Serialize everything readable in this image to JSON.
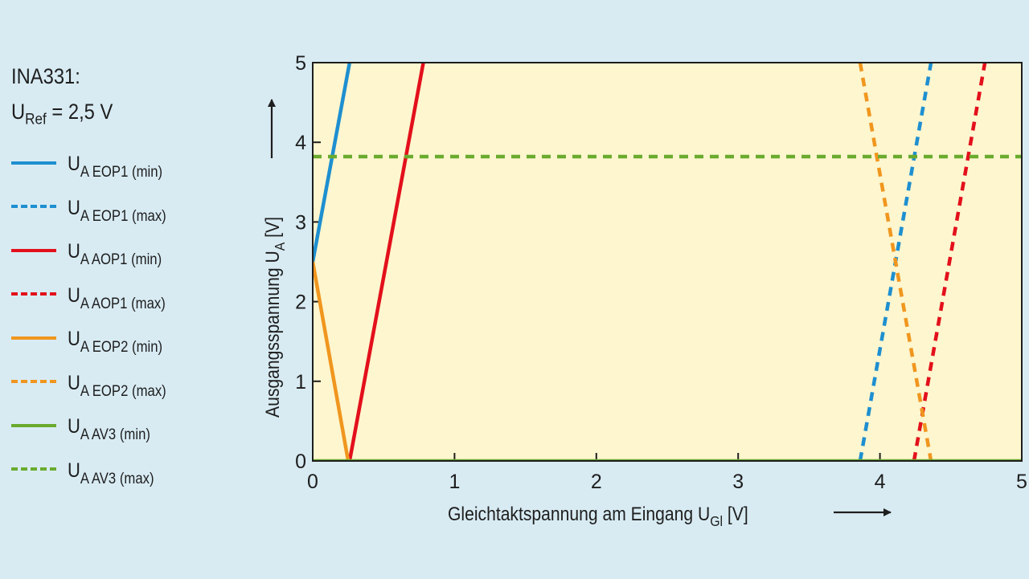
{
  "legend": {
    "heading": "INA331:",
    "ref_main": "U",
    "ref_sub": "Ref",
    "ref_value": " = 2,5 V",
    "items": [
      {
        "main": "U",
        "sub": "A EOP1 (min)",
        "color": "#1e8fd0",
        "style": "solid"
      },
      {
        "main": "U",
        "sub": "A EOP1 (max)",
        "color": "#1e8fd0",
        "style": "dashed"
      },
      {
        "main": "U",
        "sub": "A AOP1 (min)",
        "color": "#e3101b",
        "style": "solid"
      },
      {
        "main": "U",
        "sub": "A AOP1 (max)",
        "color": "#e3101b",
        "style": "dashed"
      },
      {
        "main": "U",
        "sub": "A EOP2 (min)",
        "color": "#f0961e",
        "style": "solid"
      },
      {
        "main": "U",
        "sub": "A EOP2 (max)",
        "color": "#f0961e",
        "style": "dashed"
      },
      {
        "main": "U",
        "sub": "A AV3 (min)",
        "color": "#6aab2e",
        "style": "solid"
      },
      {
        "main": "U",
        "sub": "A AV3 (max)",
        "color": "#6aab2e",
        "style": "dashed"
      }
    ]
  },
  "chart_data": {
    "type": "line",
    "xlabel_main": "Gleichtaktspannung am Eingang U",
    "xlabel_sub": "Gl",
    "xlabel_unit": " [V]",
    "ylabel_main": "Ausgangsspannung U",
    "ylabel_sub": "A",
    "ylabel_unit": " [V]",
    "xlim": [
      0,
      5
    ],
    "ylim": [
      0,
      5
    ],
    "xticks": [
      "0",
      "1",
      "2",
      "3",
      "4",
      "5"
    ],
    "yticks": [
      "0",
      "1",
      "2",
      "3",
      "4",
      "5"
    ],
    "grid": false,
    "plot_background": "#fdf6cf",
    "series": [
      {
        "name": "U A EOP1 (min)",
        "color": "#1e8fd0",
        "style": "solid",
        "points": [
          [
            0,
            2.5
          ],
          [
            0.26,
            5
          ]
        ]
      },
      {
        "name": "U A EOP1 (max)",
        "color": "#1e8fd0",
        "style": "dashed",
        "points": [
          [
            3.86,
            0
          ],
          [
            4.36,
            5
          ]
        ]
      },
      {
        "name": "U A AOP1 (min)",
        "color": "#e3101b",
        "style": "solid",
        "points": [
          [
            0.26,
            0
          ],
          [
            0.78,
            5
          ]
        ]
      },
      {
        "name": "U A AOP1 (max)",
        "color": "#e3101b",
        "style": "dashed",
        "points": [
          [
            4.24,
            0
          ],
          [
            4.74,
            5
          ]
        ]
      },
      {
        "name": "U A EOP2 (min)",
        "color": "#f0961e",
        "style": "solid",
        "points": [
          [
            0,
            2.5
          ],
          [
            0.25,
            0
          ]
        ]
      },
      {
        "name": "U A EOP2 (max)",
        "color": "#f0961e",
        "style": "dashed",
        "points": [
          [
            3.86,
            5
          ],
          [
            4.36,
            0
          ]
        ]
      },
      {
        "name": "U A AV3 (min)",
        "color": "#6aab2e",
        "style": "solid",
        "points": [
          [
            0,
            0
          ],
          [
            5,
            0
          ]
        ]
      },
      {
        "name": "U A AV3 (max)",
        "color": "#6aab2e",
        "style": "dashed",
        "points": [
          [
            0,
            3.82
          ],
          [
            5,
            3.82
          ]
        ]
      }
    ]
  }
}
